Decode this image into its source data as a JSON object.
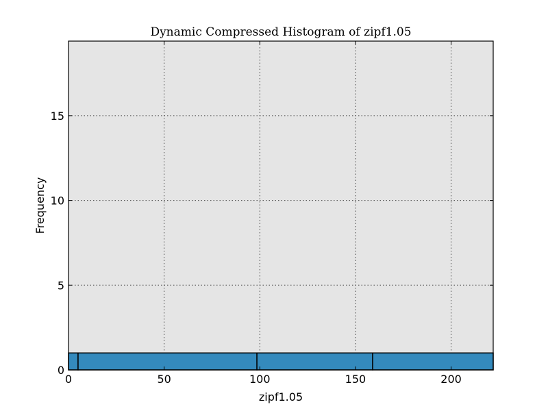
{
  "chart_data": {
    "type": "bar",
    "title": "Dynamic Compressed Histogram of zipf1.05",
    "xlabel": "zipf1.05",
    "ylabel": "Frequency",
    "xlim": [
      0,
      222
    ],
    "ylim": [
      0,
      19.4
    ],
    "xticks": [
      0,
      50,
      100,
      150,
      200
    ],
    "yticks": [
      0,
      5,
      10,
      15
    ],
    "grid": true,
    "bins": [
      {
        "x0": 0,
        "x1": 5,
        "value": 1
      },
      {
        "x0": 5,
        "x1": 98.5,
        "value": 1
      },
      {
        "x0": 98.5,
        "x1": 159,
        "value": 1
      },
      {
        "x0": 159,
        "x1": 222,
        "value": 1
      }
    ],
    "colors": {
      "bar_fill": "#348abd",
      "bar_edge": "#000000",
      "plot_background": "#e5e5e5",
      "grid": "#444444"
    }
  }
}
